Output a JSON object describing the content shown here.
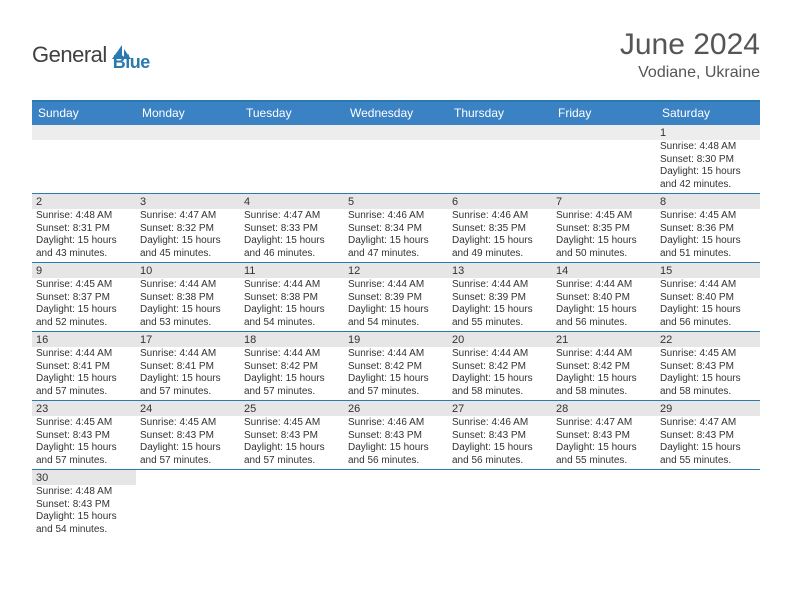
{
  "logo": {
    "text1": "General",
    "text2": "Blue",
    "icon_color": "#2a7ab0"
  },
  "header": {
    "title": "June 2024",
    "location": "Vodiane, Ukraine"
  },
  "colors": {
    "header_bar": "#3a82c4",
    "border": "#2a7ab0",
    "daynum_bg": "#e6e6e6",
    "text": "#333333"
  },
  "days_of_week": [
    "Sunday",
    "Monday",
    "Tuesday",
    "Wednesday",
    "Thursday",
    "Friday",
    "Saturday"
  ],
  "weeks": [
    [
      null,
      null,
      null,
      null,
      null,
      null,
      {
        "n": "1",
        "sunrise": "4:48 AM",
        "sunset": "8:30 PM",
        "daylight": "15 hours and 42 minutes."
      }
    ],
    [
      {
        "n": "2",
        "sunrise": "4:48 AM",
        "sunset": "8:31 PM",
        "daylight": "15 hours and 43 minutes."
      },
      {
        "n": "3",
        "sunrise": "4:47 AM",
        "sunset": "8:32 PM",
        "daylight": "15 hours and 45 minutes."
      },
      {
        "n": "4",
        "sunrise": "4:47 AM",
        "sunset": "8:33 PM",
        "daylight": "15 hours and 46 minutes."
      },
      {
        "n": "5",
        "sunrise": "4:46 AM",
        "sunset": "8:34 PM",
        "daylight": "15 hours and 47 minutes."
      },
      {
        "n": "6",
        "sunrise": "4:46 AM",
        "sunset": "8:35 PM",
        "daylight": "15 hours and 49 minutes."
      },
      {
        "n": "7",
        "sunrise": "4:45 AM",
        "sunset": "8:35 PM",
        "daylight": "15 hours and 50 minutes."
      },
      {
        "n": "8",
        "sunrise": "4:45 AM",
        "sunset": "8:36 PM",
        "daylight": "15 hours and 51 minutes."
      }
    ],
    [
      {
        "n": "9",
        "sunrise": "4:45 AM",
        "sunset": "8:37 PM",
        "daylight": "15 hours and 52 minutes."
      },
      {
        "n": "10",
        "sunrise": "4:44 AM",
        "sunset": "8:38 PM",
        "daylight": "15 hours and 53 minutes."
      },
      {
        "n": "11",
        "sunrise": "4:44 AM",
        "sunset": "8:38 PM",
        "daylight": "15 hours and 54 minutes."
      },
      {
        "n": "12",
        "sunrise": "4:44 AM",
        "sunset": "8:39 PM",
        "daylight": "15 hours and 54 minutes."
      },
      {
        "n": "13",
        "sunrise": "4:44 AM",
        "sunset": "8:39 PM",
        "daylight": "15 hours and 55 minutes."
      },
      {
        "n": "14",
        "sunrise": "4:44 AM",
        "sunset": "8:40 PM",
        "daylight": "15 hours and 56 minutes."
      },
      {
        "n": "15",
        "sunrise": "4:44 AM",
        "sunset": "8:40 PM",
        "daylight": "15 hours and 56 minutes."
      }
    ],
    [
      {
        "n": "16",
        "sunrise": "4:44 AM",
        "sunset": "8:41 PM",
        "daylight": "15 hours and 57 minutes."
      },
      {
        "n": "17",
        "sunrise": "4:44 AM",
        "sunset": "8:41 PM",
        "daylight": "15 hours and 57 minutes."
      },
      {
        "n": "18",
        "sunrise": "4:44 AM",
        "sunset": "8:42 PM",
        "daylight": "15 hours and 57 minutes."
      },
      {
        "n": "19",
        "sunrise": "4:44 AM",
        "sunset": "8:42 PM",
        "daylight": "15 hours and 57 minutes."
      },
      {
        "n": "20",
        "sunrise": "4:44 AM",
        "sunset": "8:42 PM",
        "daylight": "15 hours and 58 minutes."
      },
      {
        "n": "21",
        "sunrise": "4:44 AM",
        "sunset": "8:42 PM",
        "daylight": "15 hours and 58 minutes."
      },
      {
        "n": "22",
        "sunrise": "4:45 AM",
        "sunset": "8:43 PM",
        "daylight": "15 hours and 58 minutes."
      }
    ],
    [
      {
        "n": "23",
        "sunrise": "4:45 AM",
        "sunset": "8:43 PM",
        "daylight": "15 hours and 57 minutes."
      },
      {
        "n": "24",
        "sunrise": "4:45 AM",
        "sunset": "8:43 PM",
        "daylight": "15 hours and 57 minutes."
      },
      {
        "n": "25",
        "sunrise": "4:45 AM",
        "sunset": "8:43 PM",
        "daylight": "15 hours and 57 minutes."
      },
      {
        "n": "26",
        "sunrise": "4:46 AM",
        "sunset": "8:43 PM",
        "daylight": "15 hours and 56 minutes."
      },
      {
        "n": "27",
        "sunrise": "4:46 AM",
        "sunset": "8:43 PM",
        "daylight": "15 hours and 56 minutes."
      },
      {
        "n": "28",
        "sunrise": "4:47 AM",
        "sunset": "8:43 PM",
        "daylight": "15 hours and 55 minutes."
      },
      {
        "n": "29",
        "sunrise": "4:47 AM",
        "sunset": "8:43 PM",
        "daylight": "15 hours and 55 minutes."
      }
    ],
    [
      {
        "n": "30",
        "sunrise": "4:48 AM",
        "sunset": "8:43 PM",
        "daylight": "15 hours and 54 minutes."
      },
      null,
      null,
      null,
      null,
      null,
      null
    ]
  ],
  "labels": {
    "sunrise": "Sunrise: ",
    "sunset": "Sunset: ",
    "daylight": "Daylight: "
  }
}
